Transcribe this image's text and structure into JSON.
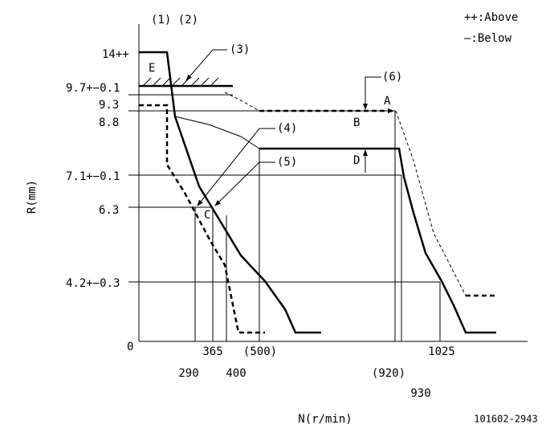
{
  "labels": {
    "markers": "(1) (2)",
    "legend_above": "++:Above",
    "legend_below": "—:Below",
    "r14": "14++",
    "E": "E",
    "ref3": "(3)",
    "r97": "9.7+−0.1",
    "r93": "9.3",
    "r88": "8.8",
    "ref6": "(6)",
    "A": "A",
    "B": "B",
    "ref4": "(4)",
    "D": "D",
    "ref5": "(5)",
    "y_axis": "R(mm)",
    "r71": "7.1+−0.1",
    "r63": "6.3",
    "C": "C",
    "r42": "4.2+−0.3",
    "zero": "0",
    "n290": "290",
    "n365": "365",
    "n400": "400",
    "n500": "(500)",
    "n920": "(920)",
    "n930": "930",
    "n1025": "1025",
    "x_axis": "N(r/min)",
    "code": "101602-2943"
  }
}
